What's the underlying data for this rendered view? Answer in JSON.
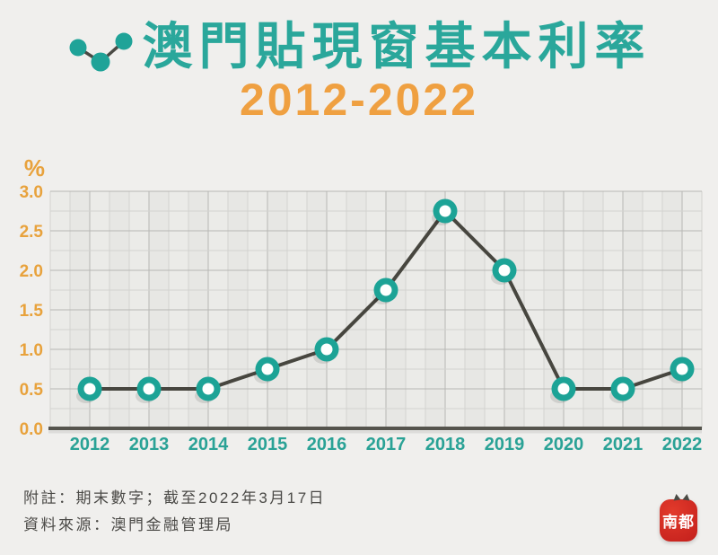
{
  "header": {
    "title": "澳門貼現窗基本利率",
    "subtitle": "2012-2022",
    "icon": "line-chart-icon"
  },
  "chart_data": {
    "type": "line",
    "title": "澳門貼現窗基本利率",
    "subtitle": "2012-2022",
    "categories": [
      "2012",
      "2013",
      "2014",
      "2015",
      "2016",
      "2017",
      "2018",
      "2019",
      "2020",
      "2021",
      "2022"
    ],
    "values": [
      0.5,
      0.5,
      0.5,
      0.75,
      1.0,
      1.75,
      2.75,
      2.0,
      0.5,
      0.5,
      0.75
    ],
    "ylabel": "%",
    "yticks": [
      "0.0",
      "0.5",
      "1.0",
      "1.5",
      "2.0",
      "2.5",
      "3.0"
    ],
    "ylim": [
      0,
      3.0
    ],
    "ytick_step": 0.5,
    "minor_step": 0.25,
    "grid": "on",
    "legend": "none",
    "colors": {
      "accent_teal": "#1fa79a",
      "accent_orange": "#e8a23c",
      "line": "#47463f",
      "marker_ring": "#1ca396",
      "marker_center": "#fdfffe",
      "tick_label_y": "#e8a23c",
      "tick_label_x": "#2aa296",
      "axis": "#55544d",
      "grid_minor": "#d3d3d0",
      "grid_major": "#b7b7b4",
      "panel_even": "#ebebe8",
      "panel_odd": "#e7e7e4"
    }
  },
  "footer": {
    "notes": [
      "附註：期末數字；截至2022年3月17日",
      "資料來源：澳門金融管理局"
    ],
    "logo_text": "南都"
  }
}
